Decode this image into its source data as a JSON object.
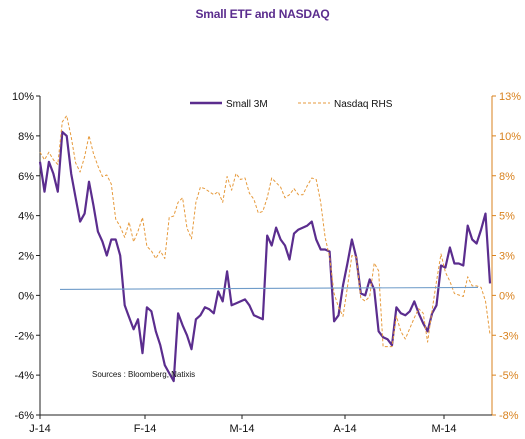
{
  "chart_data": {
    "type": "line",
    "title": "Small ETF and NASDAQ",
    "annotation": "Sources : Bloomberg, Natixis",
    "legend_placement": "top-center",
    "x_tick_labels": [
      "J-14",
      "F-14",
      "M-14",
      "A-14",
      "M-14"
    ],
    "y_left": {
      "range": [
        -6,
        10
      ],
      "ticks": [
        "-6%",
        "-4%",
        "-2%",
        "0%",
        "2%",
        "4%",
        "6%",
        "8%",
        "10%"
      ]
    },
    "y_right": {
      "range": [
        -8,
        13
      ],
      "ticks": [
        "-8%",
        "-5%",
        "-3%",
        "0%",
        "3%",
        "5%",
        "8%",
        "10%",
        "13%"
      ]
    },
    "grid": false,
    "colors": {
      "small": "#5b2d8e",
      "nasdaq": "#e69a3c",
      "trend": "#6f9cc9",
      "title": "#5b2d8e",
      "right_axis": "#d9821e"
    },
    "series": [
      {
        "name": "Small 3M",
        "axis": "left",
        "style": "solid",
        "values": [
          6.7,
          5.2,
          6.7,
          6.1,
          5.2,
          8.2,
          8.0,
          6.1,
          4.9,
          3.7,
          4.1,
          5.7,
          4.5,
          3.2,
          2.7,
          2.0,
          2.8,
          2.8,
          2.0,
          -0.5,
          -1.1,
          -1.7,
          -1.2,
          -2.9,
          -0.6,
          -0.8,
          -1.8,
          -2.5,
          -3.5,
          -3.9,
          -4.3,
          -0.9,
          -1.5,
          -2.0,
          -2.7,
          -1.2,
          -1.0,
          -0.6,
          -0.7,
          -0.9,
          0.2,
          -0.3,
          1.2,
          -0.5,
          -0.4,
          -0.3,
          -0.2,
          -0.5,
          -1.0,
          -1.1,
          -1.2,
          3.0,
          2.5,
          3.4,
          2.8,
          2.5,
          1.8,
          3.1,
          3.3,
          3.4,
          3.5,
          3.7,
          2.8,
          2.3,
          2.3,
          2.2,
          -1.3,
          -1.0,
          0.5,
          1.6,
          2.8,
          1.9,
          0.1,
          0.0,
          0.8,
          0.3,
          -1.8,
          -2.1,
          -2.2,
          -2.5,
          -0.6,
          -0.9,
          -1.0,
          -0.8,
          -0.3,
          -0.9,
          -1.4,
          -1.8,
          -0.9,
          -0.5,
          1.5,
          1.4,
          2.4,
          1.6,
          1.6,
          1.5,
          3.5,
          2.8,
          2.6,
          3.3,
          4.1,
          0.6
        ]
      },
      {
        "name": "Nasdaq RHS",
        "axis": "right",
        "style": "dashed",
        "values": [
          9.3,
          8.8,
          9.3,
          8.8,
          8.5,
          11.3,
          11.7,
          10.3,
          8.6,
          8.0,
          9.0,
          10.4,
          9.2,
          8.4,
          7.7,
          7.8,
          7.2,
          4.9,
          4.4,
          3.7,
          4.7,
          3.4,
          4.1,
          5.0,
          3.1,
          2.8,
          2.3,
          2.8,
          2.3,
          5.0,
          5.1,
          6.0,
          6.3,
          4.3,
          3.6,
          6.0,
          7.0,
          6.9,
          6.7,
          6.5,
          6.7,
          6.0,
          7.7,
          6.8,
          7.9,
          7.5,
          7.6,
          6.6,
          6.2,
          5.3,
          5.4,
          6.3,
          7.6,
          7.3,
          7.0,
          6.3,
          6.5,
          6.9,
          6.5,
          6.5,
          7.1,
          7.6,
          7.5,
          6.0,
          3.7,
          2.4,
          0.0,
          -0.9,
          -1.5,
          0.4,
          2.5,
          2.4,
          -0.3,
          -0.5,
          -0.2,
          2.0,
          1.5,
          -3.5,
          -3.5,
          -3.5,
          -1.5,
          -2.5,
          -3.0,
          -2.3,
          -1.6,
          -1.0,
          -1.3,
          -3.2,
          -1.1,
          0.8,
          2.6,
          1.4,
          0.8,
          0.0,
          -0.1,
          -0.2,
          1.1,
          0.5,
          0.5,
          0.4,
          -0.5,
          -2.7
        ]
      },
      {
        "name": "",
        "axis": "left",
        "style": "trend",
        "values": [
          0.3,
          0.4
        ]
      }
    ]
  }
}
